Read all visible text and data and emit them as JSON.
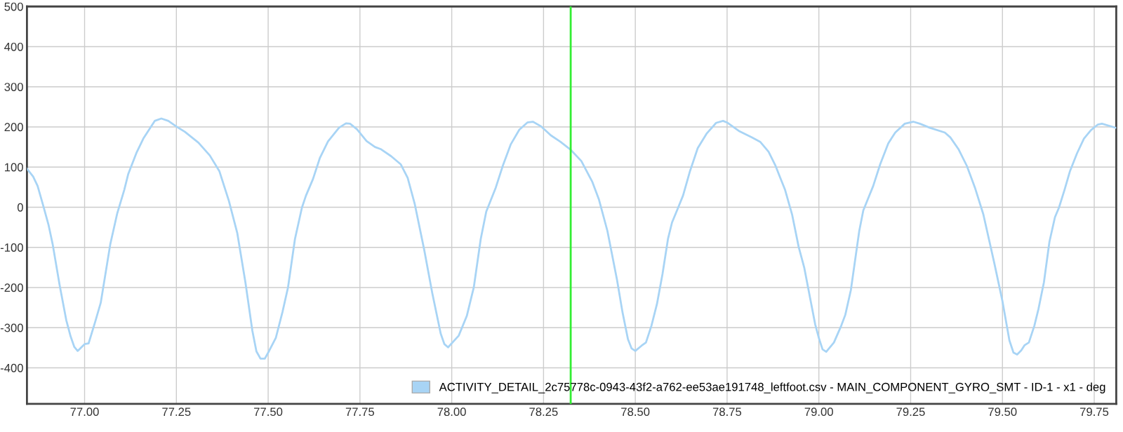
{
  "chart_data": {
    "type": "line",
    "x": [
      76.843,
      76.86,
      76.872,
      76.887,
      76.902,
      76.913,
      76.932,
      76.95,
      76.962,
      76.972,
      76.981,
      77.0,
      77.011,
      77.029,
      77.044,
      77.07,
      77.089,
      77.108,
      77.119,
      77.142,
      77.16,
      77.191,
      77.209,
      77.228,
      77.25,
      77.273,
      77.31,
      77.341,
      77.367,
      77.393,
      77.416,
      77.438,
      77.457,
      77.468,
      77.479,
      77.491,
      77.502,
      77.521,
      77.539,
      77.554,
      77.573,
      77.592,
      77.603,
      77.622,
      77.641,
      77.663,
      77.693,
      77.712,
      77.723,
      77.742,
      77.768,
      77.791,
      77.806,
      77.835,
      77.861,
      77.88,
      77.899,
      77.925,
      77.947,
      77.97,
      77.98,
      77.99,
      78.019,
      78.041,
      78.06,
      78.079,
      78.094,
      78.12,
      78.139,
      78.161,
      78.184,
      78.206,
      78.221,
      78.244,
      78.27,
      78.296,
      78.323,
      78.353,
      78.383,
      78.401,
      78.424,
      78.45,
      78.465,
      78.48,
      78.49,
      78.5,
      78.517,
      78.529,
      78.544,
      78.559,
      78.574,
      78.589,
      78.6,
      78.615,
      78.63,
      78.649,
      78.67,
      78.694,
      78.72,
      78.739,
      78.75,
      78.784,
      78.817,
      78.84,
      78.863,
      78.881,
      78.908,
      78.927,
      78.945,
      78.96,
      78.975,
      78.99,
      79.001,
      79.01,
      79.02,
      79.041,
      79.061,
      79.072,
      79.087,
      79.11,
      79.121,
      79.133,
      79.148,
      79.167,
      79.189,
      79.208,
      79.234,
      79.257,
      79.275,
      79.302,
      79.343,
      79.358,
      79.38,
      79.403,
      79.425,
      79.448,
      79.478,
      79.5,
      79.519,
      79.53,
      79.54,
      79.551,
      79.56,
      79.572,
      79.587,
      79.598,
      79.613,
      79.628,
      79.643,
      79.654,
      79.669,
      79.684,
      79.703,
      79.722,
      79.741,
      79.76,
      79.771,
      79.808
    ],
    "series": [
      {
        "name": "ACTIVITY_DETAIL_2c75778c-0943-43f2-a762-ee53ae191748_leftfoot.csv - MAIN_COMPONENT_GYRO_SMT - ID-1 - x1 - deg",
        "color": "#a8d4f5",
        "values": [
          96,
          76,
          53,
          5,
          -45,
          -92,
          -194,
          -281,
          -322,
          -348,
          -358,
          -341,
          -339,
          -285,
          -238,
          -92,
          -15,
          43,
          83,
          137,
          171,
          215,
          221,
          215,
          201,
          188,
          161,
          129,
          90,
          16,
          -65,
          -187,
          -308,
          -359,
          -377,
          -377,
          -359,
          -325,
          -261,
          -200,
          -79,
          -1,
          29,
          70,
          123,
          164,
          198,
          209,
          208,
          194,
          165,
          150,
          145,
          127,
          107,
          73,
          9,
          -106,
          -214,
          -315,
          -341,
          -349,
          -320,
          -271,
          -200,
          -79,
          -11,
          49,
          103,
          157,
          193,
          211,
          213,
          201,
          179,
          163,
          144,
          115,
          63,
          19,
          -59,
          -180,
          -261,
          -329,
          -352,
          -358,
          -345,
          -337,
          -295,
          -241,
          -167,
          -79,
          -38,
          -5,
          29,
          90,
          147,
          183,
          210,
          215,
          211,
          189,
          174,
          163,
          138,
          105,
          43,
          -18,
          -99,
          -150,
          -221,
          -292,
          -329,
          -354,
          -360,
          -337,
          -295,
          -268,
          -207,
          -59,
          -8,
          19,
          53,
          107,
          159,
          186,
          208,
          213,
          208,
          198,
          186,
          174,
          145,
          103,
          49,
          -18,
          -140,
          -234,
          -332,
          -362,
          -367,
          -357,
          -344,
          -337,
          -295,
          -254,
          -187,
          -86,
          -25,
          -1,
          43,
          90,
          134,
          171,
          192,
          206,
          208,
          198
        ]
      }
    ],
    "xlim": [
      76.843,
      79.81
    ],
    "xticks": [
      {
        "value": 77.0,
        "label": "77.00"
      },
      {
        "value": 77.25,
        "label": "77.25"
      },
      {
        "value": 77.5,
        "label": "77.50"
      },
      {
        "value": 77.75,
        "label": "77.75"
      },
      {
        "value": 78.0,
        "label": "78.00"
      },
      {
        "value": 78.25,
        "label": "78.25"
      },
      {
        "value": 78.5,
        "label": "78.50"
      },
      {
        "value": 78.75,
        "label": "78.75"
      },
      {
        "value": 79.0,
        "label": "79.00"
      },
      {
        "value": 79.25,
        "label": "79.25"
      },
      {
        "value": 79.5,
        "label": "79.50"
      },
      {
        "value": 79.75,
        "label": "79.75"
      }
    ],
    "ylim": [
      -490,
      500
    ],
    "yticks": [
      -400,
      -300,
      -200,
      -100,
      0,
      100,
      200,
      300,
      400,
      500
    ],
    "ref_lines": [
      {
        "axis": "x",
        "value": 78.324,
        "color": "#33ee33"
      }
    ],
    "grid": true,
    "legend": "bottom right",
    "marker": "none",
    "line_style": "solid"
  }
}
